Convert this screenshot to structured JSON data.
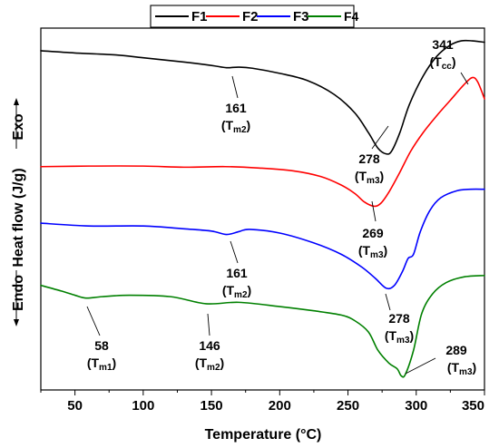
{
  "chart_data": {
    "type": "line",
    "title": "",
    "xlabel": "Temperature (°C)",
    "ylabel": "Heat flow (J/g)",
    "ylabel_top": "Exo",
    "ylabel_bottom": "Endo",
    "xlim": [
      25,
      350
    ],
    "xticks": [
      50,
      100,
      150,
      200,
      250,
      300,
      350
    ],
    "yticks_shown": false,
    "grid": false,
    "legend_position": "top-center",
    "series": [
      {
        "name": "F1",
        "color": "#000000",
        "points": [
          [
            25,
            9.5
          ],
          [
            50,
            9.42
          ],
          [
            80,
            9.35
          ],
          [
            100,
            9.25
          ],
          [
            130,
            9.1
          ],
          [
            150,
            8.98
          ],
          [
            161,
            8.9
          ],
          [
            170,
            8.92
          ],
          [
            180,
            8.88
          ],
          [
            200,
            8.7
          ],
          [
            220,
            8.45
          ],
          [
            240,
            7.95
          ],
          [
            255,
            7.3
          ],
          [
            265,
            6.6
          ],
          [
            272,
            6.05
          ],
          [
            278,
            5.85
          ],
          [
            282,
            5.95
          ],
          [
            288,
            6.6
          ],
          [
            295,
            7.6
          ],
          [
            305,
            8.6
          ],
          [
            315,
            9.3
          ],
          [
            325,
            9.7
          ],
          [
            333,
            9.85
          ],
          [
            341,
            9.85
          ],
          [
            350,
            9.8
          ]
        ]
      },
      {
        "name": "F2",
        "color": "#ff0000",
        "points": [
          [
            25,
            5.4
          ],
          [
            60,
            5.42
          ],
          [
            100,
            5.42
          ],
          [
            130,
            5.38
          ],
          [
            160,
            5.4
          ],
          [
            185,
            5.35
          ],
          [
            210,
            5.25
          ],
          [
            230,
            5.05
          ],
          [
            245,
            4.75
          ],
          [
            255,
            4.45
          ],
          [
            262,
            4.15
          ],
          [
            269,
            4.0
          ],
          [
            274,
            4.1
          ],
          [
            280,
            4.5
          ],
          [
            288,
            5.2
          ],
          [
            296,
            5.95
          ],
          [
            305,
            6.6
          ],
          [
            315,
            7.2
          ],
          [
            325,
            7.75
          ],
          [
            335,
            8.3
          ],
          [
            341,
            8.55
          ],
          [
            345,
            8.4
          ],
          [
            350,
            7.8
          ]
        ]
      },
      {
        "name": "F3",
        "color": "#0000ff",
        "points": [
          [
            25,
            3.4
          ],
          [
            60,
            3.3
          ],
          [
            100,
            3.3
          ],
          [
            130,
            3.2
          ],
          [
            150,
            3.12
          ],
          [
            161,
            3.0
          ],
          [
            170,
            3.1
          ],
          [
            178,
            3.18
          ],
          [
            200,
            3.05
          ],
          [
            225,
            2.7
          ],
          [
            245,
            2.3
          ],
          [
            260,
            1.85
          ],
          [
            270,
            1.45
          ],
          [
            278,
            1.1
          ],
          [
            284,
            1.2
          ],
          [
            290,
            1.7
          ],
          [
            294,
            2.15
          ],
          [
            298,
            2.3
          ],
          [
            303,
            3.1
          ],
          [
            310,
            3.85
          ],
          [
            318,
            4.3
          ],
          [
            330,
            4.55
          ],
          [
            340,
            4.6
          ],
          [
            350,
            4.6
          ]
        ]
      },
      {
        "name": "F4",
        "color": "#008000",
        "points": [
          [
            25,
            1.2
          ],
          [
            40,
            1.0
          ],
          [
            50,
            0.85
          ],
          [
            58,
            0.75
          ],
          [
            70,
            0.8
          ],
          [
            90,
            0.85
          ],
          [
            120,
            0.8
          ],
          [
            146,
            0.55
          ],
          [
            170,
            0.6
          ],
          [
            200,
            0.45
          ],
          [
            225,
            0.3
          ],
          [
            245,
            0.15
          ],
          [
            255,
            -0.05
          ],
          [
            265,
            -0.45
          ],
          [
            272,
            -1.1
          ],
          [
            280,
            -1.55
          ],
          [
            286,
            -1.75
          ],
          [
            289,
            -2.0
          ],
          [
            292,
            -1.95
          ],
          [
            298,
            -1.1
          ],
          [
            304,
            0.2
          ],
          [
            312,
            0.9
          ],
          [
            322,
            1.3
          ],
          [
            335,
            1.5
          ],
          [
            350,
            1.55
          ]
        ]
      }
    ],
    "annotations": [
      {
        "value": "161",
        "main": "(T",
        "sub": "m2",
        "close": ")"
      },
      {
        "value": "278",
        "main": "(T",
        "sub": "m3",
        "close": ")"
      },
      {
        "value": "341",
        "main": "(T",
        "sub": "cc",
        "close": ")"
      },
      {
        "value": "269",
        "main": "(T",
        "sub": "m3",
        "close": ")"
      },
      {
        "value": "161",
        "main": "(T",
        "sub": "m2",
        "close": ")"
      },
      {
        "value": "278",
        "main": "(T",
        "sub": "m3",
        "close": ")"
      },
      {
        "value": "58",
        "main": "(T",
        "sub": "m1",
        "close": ")"
      },
      {
        "value": "146",
        "main": "(T",
        "sub": "m2",
        "close": ")"
      },
      {
        "value": "289",
        "main": "(T",
        "sub": "m3",
        "close": ")"
      }
    ]
  }
}
